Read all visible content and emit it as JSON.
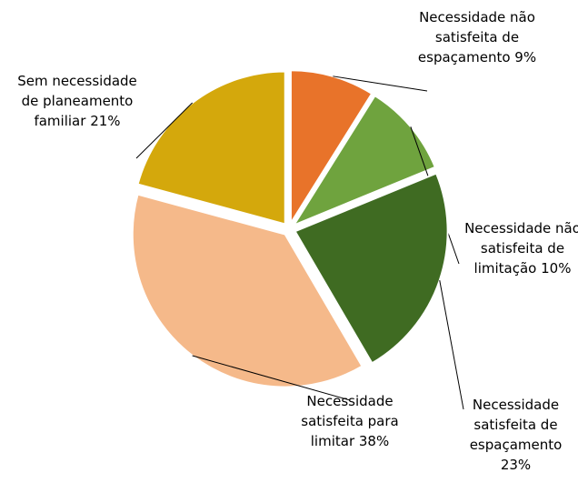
{
  "chart_data": {
    "type": "pie",
    "categories": [
      "Necessidade não satisfeita de espaçamento",
      "Necessidade não satisfeita de limitação",
      "Necessidade satisfeita de espaçamento",
      "Necessidade satisfeita para limitar",
      "Sem necessidade de planeamento familiar"
    ],
    "values": [
      9,
      10,
      23,
      38,
      21
    ],
    "value_labels": [
      "9%",
      "10%",
      "23%",
      "38%",
      "21%"
    ],
    "colors": [
      "#e8732a",
      "#6fa33e",
      "#3f6b22",
      "#f5b98a",
      "#d4a80c"
    ]
  }
}
